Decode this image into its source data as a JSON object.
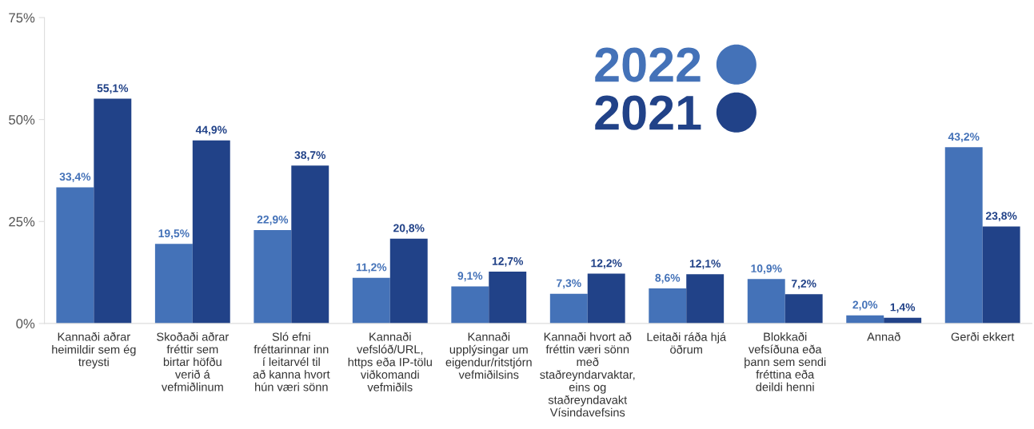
{
  "chart_data": {
    "type": "bar",
    "categories": [
      "Kannaði aðrar heimildir sem ég treysti",
      "Skoðaði aðrar fréttir sem birtar höfðu verið á vefmiðlinum",
      "Sló efni fréttarinnar inn í leitarvél til að kanna hvort hún væri sönn",
      "Kannaði vefslóð/URL, https eða IP-tölu viðkomandi vefmiðils",
      "Kannaði upplýsingar um eigendur/ritstjórn vefmiðilsins",
      "Kannaði hvort að fréttin væri sönn með staðreyndarvaktar, eins og staðreyndavakt Vísindavefsins",
      "Leitaði ráða hjá öðrum",
      "Blokkaði vefsíðuna eða þann sem sendi fréttina eða deildi henni",
      "Annað",
      "Gerði ekkert"
    ],
    "series": [
      {
        "name": "2022",
        "color": "#4472b8",
        "values": [
          33.4,
          19.5,
          22.9,
          11.2,
          9.1,
          7.3,
          8.6,
          10.9,
          2.0,
          43.2
        ],
        "value_labels": [
          "33,4%",
          "19,5%",
          "22,9%",
          "11,2%",
          "9,1%",
          "7,3%",
          "8,6%",
          "10,9%",
          "2,0%",
          "43,2%"
        ]
      },
      {
        "name": "2021",
        "color": "#214288",
        "values": [
          55.1,
          44.9,
          38.7,
          20.8,
          12.7,
          12.2,
          12.1,
          7.2,
          1.4,
          23.8
        ],
        "value_labels": [
          "55,1%",
          "44,9%",
          "38,7%",
          "20,8%",
          "12,7%",
          "12,2%",
          "12,1%",
          "7,2%",
          "1,4%",
          "23,8%"
        ]
      }
    ],
    "ylim": [
      0,
      75
    ],
    "yticks": [
      {
        "value": 0,
        "label": "0%"
      },
      {
        "value": 25,
        "label": "25%"
      },
      {
        "value": 50,
        "label": "50%"
      },
      {
        "value": 75,
        "label": "75%"
      }
    ],
    "grid": false,
    "legend": "top right"
  }
}
